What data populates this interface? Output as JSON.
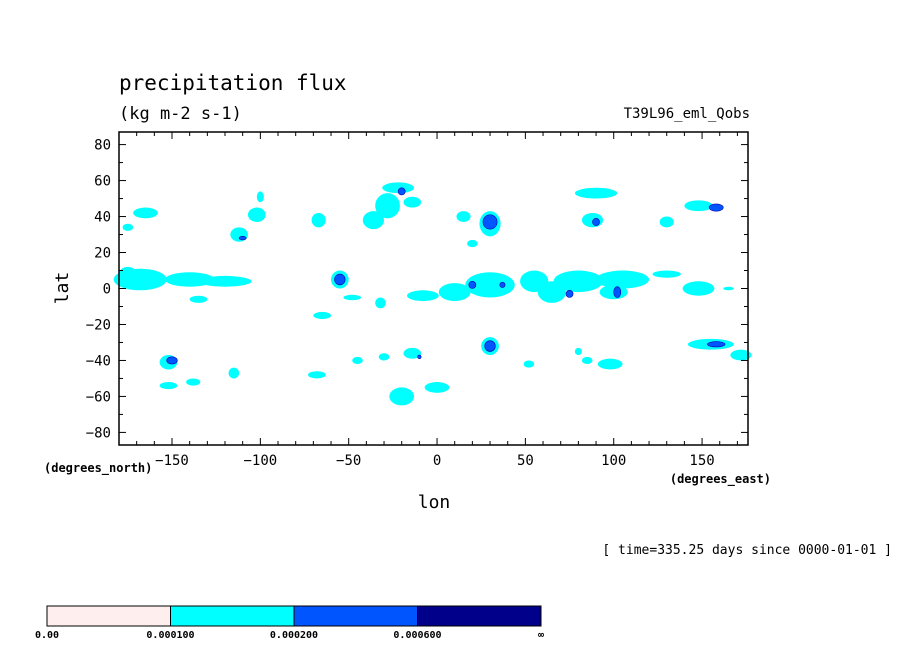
{
  "chart_data": {
    "type": "heatmap",
    "title": "precipitation flux",
    "units": "(kg m-2 s-1)",
    "experiment": "T39L96_eml_Qobs",
    "xlabel": "lon",
    "ylabel": "lat",
    "x_unit_label": "(degrees_east)",
    "y_unit_label": "(degrees_north)",
    "time_label": "[ time=335.25 days since 0000-01-01 ]",
    "xlim": [
      -180,
      176
    ],
    "ylim": [
      -87,
      87
    ],
    "x_ticks": [
      -150,
      -100,
      -50,
      0,
      50,
      100,
      150
    ],
    "x_tick_labels": [
      "−150",
      "−100",
      "−50",
      "0",
      "50",
      "100",
      "150"
    ],
    "y_ticks": [
      80,
      60,
      40,
      20,
      0,
      -20,
      -40,
      -60,
      -80
    ],
    "y_tick_labels": [
      "80",
      "60",
      "40",
      "20",
      "0",
      "−20",
      "−40",
      "−60",
      "−80"
    ],
    "colorbar": {
      "levels": [
        "0.00",
        "0.000100",
        "0.000200",
        "0.000600",
        "∞"
      ],
      "colors": [
        "#ffeeee",
        "#00ffff",
        "#0055ff",
        "#00008b"
      ]
    },
    "contours": {
      "cyan": [
        [
          -165,
          42,
          7,
          3
        ],
        [
          -175,
          34,
          3,
          2
        ],
        [
          -168,
          5,
          15,
          6
        ],
        [
          -140,
          5,
          14,
          4
        ],
        [
          -120,
          4,
          15,
          3
        ],
        [
          -175,
          8,
          5,
          4
        ],
        [
          -135,
          -6,
          5,
          2
        ],
        [
          -152,
          -41,
          5,
          4
        ],
        [
          -152,
          -54,
          5,
          2
        ],
        [
          -138,
          -52,
          4,
          2
        ],
        [
          -115,
          -47,
          3,
          3
        ],
        [
          -112,
          30,
          5,
          4
        ],
        [
          -102,
          41,
          5,
          4
        ],
        [
          -100,
          51,
          2,
          3
        ],
        [
          -67,
          38,
          4,
          4
        ],
        [
          -68,
          -48,
          5,
          2
        ],
        [
          -65,
          -15,
          5,
          2
        ],
        [
          -55,
          5,
          5,
          5
        ],
        [
          -48,
          -5,
          5,
          1.5
        ],
        [
          -45,
          -40,
          3,
          2
        ],
        [
          -36,
          38,
          6,
          5
        ],
        [
          -28,
          46,
          7,
          7
        ],
        [
          -22,
          56,
          9,
          3
        ],
        [
          -14,
          48,
          5,
          3
        ],
        [
          -32,
          -8,
          3,
          3
        ],
        [
          -30,
          -38,
          3,
          2
        ],
        [
          -14,
          -36,
          5,
          3
        ],
        [
          -20,
          -60,
          7,
          5
        ],
        [
          -8,
          -4,
          9,
          3
        ],
        [
          0,
          -55,
          7,
          3
        ],
        [
          30,
          36,
          6,
          7
        ],
        [
          15,
          40,
          4,
          3
        ],
        [
          20,
          25,
          3,
          2
        ],
        [
          30,
          2,
          14,
          7
        ],
        [
          10,
          -2,
          9,
          5
        ],
        [
          55,
          4,
          8,
          6
        ],
        [
          65,
          -2,
          8,
          6
        ],
        [
          80,
          4,
          14,
          6
        ],
        [
          100,
          -2,
          8,
          4
        ],
        [
          105,
          5,
          15,
          5
        ],
        [
          130,
          8,
          8,
          2
        ],
        [
          30,
          -32,
          5,
          5
        ],
        [
          52,
          -42,
          3,
          2
        ],
        [
          85,
          -40,
          3,
          2
        ],
        [
          98,
          -42,
          7,
          3
        ],
        [
          80,
          -35,
          2,
          2
        ],
        [
          90,
          53,
          12,
          3
        ],
        [
          88,
          38,
          6,
          4
        ],
        [
          130,
          37,
          4,
          3
        ],
        [
          148,
          46,
          8,
          3
        ],
        [
          165,
          0,
          3,
          1
        ],
        [
          148,
          0,
          9,
          4
        ],
        [
          155,
          -31,
          13,
          3
        ],
        [
          172,
          -37,
          6,
          3
        ],
        [
          100,
          2,
          4,
          4
        ]
      ],
      "blue": [
        [
          -150,
          -40,
          3,
          2
        ],
        [
          -55,
          5,
          3,
          3
        ],
        [
          30,
          37,
          4,
          4
        ],
        [
          30,
          -32,
          3,
          3
        ],
        [
          102,
          -2,
          2,
          3
        ],
        [
          75,
          -3,
          2,
          2
        ],
        [
          20,
          2,
          2,
          2
        ],
        [
          158,
          -31,
          5,
          1.5
        ],
        [
          158,
          45,
          4,
          2
        ],
        [
          90,
          37,
          2,
          2
        ],
        [
          -20,
          54,
          2,
          2
        ],
        [
          37,
          2,
          1.5,
          1.5
        ],
        [
          -110,
          28,
          2,
          1
        ],
        [
          -10,
          -38,
          1,
          1
        ]
      ]
    }
  }
}
